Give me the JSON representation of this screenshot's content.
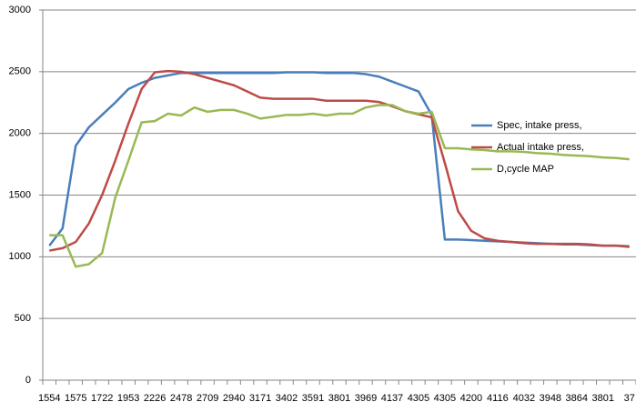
{
  "chart_data": {
    "type": "line",
    "categories": [
      "1554",
      null,
      "1575",
      null,
      "1722",
      null,
      "1953",
      null,
      "2226",
      null,
      "2478",
      null,
      "2709",
      null,
      "2940",
      null,
      "3171",
      null,
      "3402",
      null,
      "3591",
      null,
      "3801",
      null,
      "3969",
      null,
      "4137",
      null,
      "4305",
      null,
      "4305",
      null,
      "4200",
      null,
      "4116",
      null,
      "4032",
      null,
      "3948",
      null,
      "3864",
      null,
      "3801",
      null,
      "37"
    ],
    "series": [
      {
        "name": "Spec, intake press,",
        "color": "#4a7ebb",
        "values": [
          1090,
          1230,
          1900,
          2050,
          2150,
          2250,
          2360,
          2410,
          2450,
          2470,
          2490,
          2490,
          2490,
          2490,
          2490,
          2490,
          2490,
          2490,
          2495,
          2495,
          2495,
          2490,
          2490,
          2490,
          2480,
          2460,
          2420,
          2380,
          2340,
          2150,
          1140,
          1140,
          1135,
          1130,
          1125,
          1120,
          1115,
          1110,
          1105,
          1100,
          1100,
          1095,
          1090,
          1090,
          1085
        ]
      },
      {
        "name": "Actual intake press,",
        "color": "#be4b48",
        "values": [
          1050,
          1070,
          1120,
          1270,
          1500,
          1780,
          2080,
          2360,
          2495,
          2505,
          2500,
          2480,
          2450,
          2420,
          2390,
          2340,
          2290,
          2280,
          2280,
          2280,
          2280,
          2265,
          2265,
          2265,
          2265,
          2255,
          2220,
          2180,
          2155,
          2130,
          1760,
          1370,
          1210,
          1150,
          1130,
          1120,
          1110,
          1105,
          1105,
          1105,
          1105,
          1100,
          1090,
          1090,
          1080
        ]
      },
      {
        "name": "D,cycle MAP",
        "color": "#98b954",
        "values": [
          1175,
          1175,
          920,
          940,
          1030,
          1480,
          1780,
          2090,
          2100,
          2160,
          2145,
          2210,
          2175,
          2190,
          2190,
          2160,
          2120,
          2135,
          2150,
          2150,
          2160,
          2145,
          2160,
          2160,
          2210,
          2230,
          2230,
          2180,
          2160,
          2175,
          1880,
          1880,
          1870,
          1865,
          1855,
          1855,
          1850,
          1840,
          1835,
          1825,
          1820,
          1815,
          1805,
          1800,
          1790
        ]
      }
    ],
    "ylim": [
      0,
      3000
    ],
    "yticks": [
      0,
      500,
      1000,
      1500,
      2000,
      2500,
      3000
    ],
    "grid": true,
    "legend": "right"
  }
}
